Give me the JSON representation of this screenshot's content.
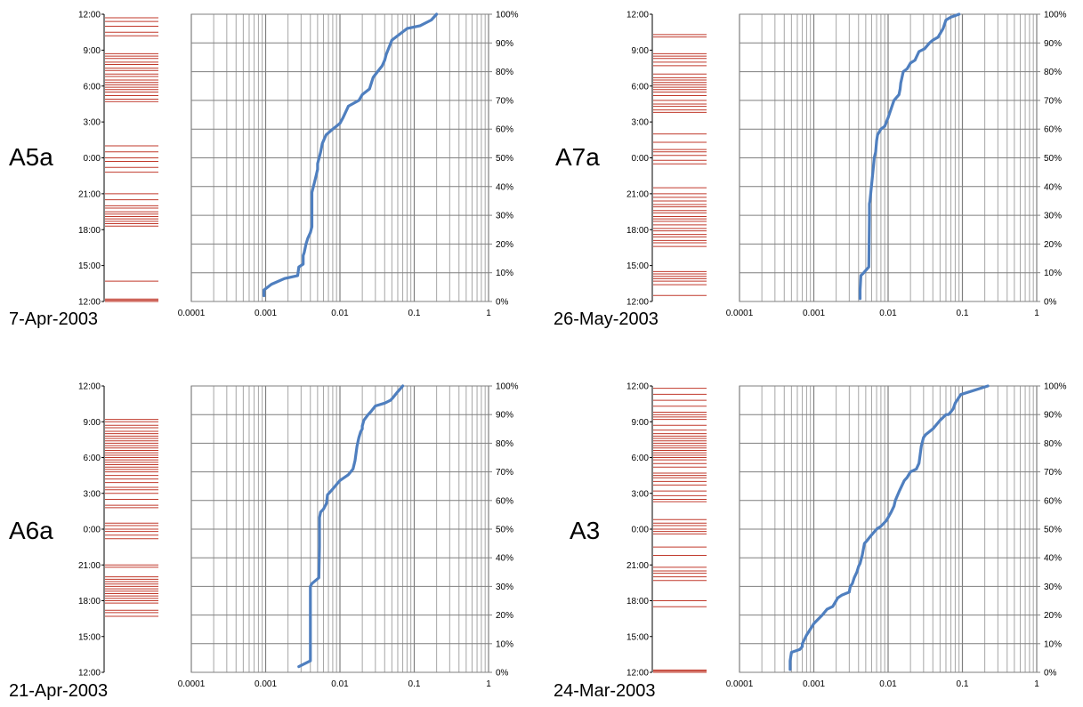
{
  "chart_data": [
    {
      "type": "line",
      "label": "A5a",
      "date": "7-Apr-2003",
      "time_ticks": [
        "12:00",
        "9:00",
        "6:00",
        "3:00",
        "0:00",
        "21:00",
        "18:00",
        "15:00",
        "12:00"
      ],
      "x_ticks": [
        "0.0001",
        "0.001",
        "0.01",
        "0.1",
        "1"
      ],
      "y_ticks": [
        "100%",
        "90%",
        "80%",
        "70%",
        "60%",
        "50%",
        "40%",
        "30%",
        "20%",
        "10%",
        "0%"
      ],
      "xscale": "log",
      "xlim": [
        0.0001,
        1
      ],
      "ylim": [
        0,
        100
      ],
      "grid": true,
      "event_times_hours_before_top": [
        0.3,
        0.6,
        1.0,
        1.5,
        1.8,
        3.3,
        3.5,
        3.7,
        4.0,
        4.2,
        4.5,
        4.7,
        5.0,
        5.2,
        5.5,
        5.7,
        5.9,
        6.1,
        6.3,
        6.5,
        6.8,
        7.1,
        7.3,
        11.0,
        11.5,
        12.0,
        12.3,
        12.8,
        13.2,
        15.0,
        15.5,
        16.0,
        16.2,
        16.5,
        16.7,
        16.9,
        17.1,
        17.3,
        17.5,
        17.7,
        22.3,
        23.8,
        23.9,
        24.0
      ],
      "series": [
        {
          "x": [
            0.00095,
            0.00095,
            0.0012,
            0.0018,
            0.0027,
            0.0028,
            0.0032,
            0.0032,
            0.0033,
            0.0035,
            0.0037,
            0.004,
            0.0042,
            0.0042,
            0.0042,
            0.0042,
            0.0045,
            0.0048,
            0.005,
            0.005,
            0.0055,
            0.0058,
            0.0065,
            0.008,
            0.01,
            0.011,
            0.013,
            0.018,
            0.02,
            0.025,
            0.028,
            0.032,
            0.037,
            0.04,
            0.042,
            0.05,
            0.08,
            0.12,
            0.17,
            0.2
          ],
          "y": [
            2,
            4,
            6,
            8,
            9,
            12,
            13,
            16,
            17,
            20,
            22,
            24,
            26,
            30,
            34,
            38,
            41,
            44,
            46,
            48,
            52,
            55,
            58,
            60,
            62,
            64,
            68,
            70,
            72,
            74,
            78,
            80,
            82,
            84,
            86,
            91,
            95,
            96,
            98,
            100
          ]
        }
      ]
    },
    {
      "type": "line",
      "label": "A7a",
      "date": "26-May-2003",
      "time_ticks": [
        "12:00",
        "9:00",
        "6:00",
        "3:00",
        "0:00",
        "21:00",
        "18:00",
        "15:00",
        "12:00"
      ],
      "x_ticks": [
        "0.0001",
        "0.001",
        "0.01",
        "0.1",
        "1"
      ],
      "y_ticks": [
        "100%",
        "90%",
        "80%",
        "70%",
        "60%",
        "50%",
        "40%",
        "30%",
        "20%",
        "10%",
        "0%"
      ],
      "xscale": "log",
      "xlim": [
        0.0001,
        1
      ],
      "ylim": [
        0,
        100
      ],
      "grid": true,
      "event_times_hours_before_top": [
        1.7,
        1.9,
        3.3,
        3.5,
        3.7,
        4.0,
        4.3,
        5.0,
        5.3,
        5.5,
        5.7,
        5.9,
        6.1,
        6.3,
        6.5,
        6.8,
        7.2,
        7.5,
        7.7,
        8.0,
        8.2,
        10.0,
        10.7,
        11.3,
        11.5,
        11.8,
        12.2,
        12.5,
        14.5,
        15.0,
        15.3,
        15.6,
        15.9,
        16.1,
        16.4,
        16.6,
        16.9,
        17.1,
        17.3,
        17.6,
        17.9,
        18.1,
        18.4,
        18.6,
        18.9,
        19.1,
        19.4,
        21.5,
        21.7,
        21.9,
        22.1,
        22.3,
        22.6,
        23.5
      ],
      "series": [
        {
          "x": [
            0.0042,
            0.0042,
            0.0043,
            0.0047,
            0.0055,
            0.0056,
            0.0056,
            0.0057,
            0.0063,
            0.0065,
            0.0068,
            0.007,
            0.0072,
            0.008,
            0.009,
            0.01,
            0.012,
            0.014,
            0.0145,
            0.0148,
            0.016,
            0.018,
            0.02,
            0.023,
            0.024,
            0.026,
            0.031,
            0.036,
            0.04,
            0.047,
            0.055,
            0.06,
            0.07,
            0.09
          ],
          "y": [
            1,
            4,
            9,
            10,
            12,
            29,
            34,
            35,
            46,
            50,
            52,
            56,
            58,
            60,
            61,
            64,
            70,
            72,
            74,
            76,
            80,
            81,
            83,
            84,
            85,
            87,
            88,
            90,
            91,
            92,
            95,
            98,
            99,
            100
          ]
        }
      ]
    },
    {
      "type": "line",
      "label": "A6a",
      "date": "21-Apr-2003",
      "time_ticks": [
        "12:00",
        "9:00",
        "6:00",
        "3:00",
        "0:00",
        "21:00",
        "18:00",
        "15:00",
        "12:00"
      ],
      "x_ticks": [
        "0.0001",
        "0.001",
        "0.01",
        "0.1",
        "1"
      ],
      "y_ticks": [
        "100%",
        "90%",
        "80%",
        "70%",
        "60%",
        "50%",
        "40%",
        "30%",
        "20%",
        "10%",
        "0%"
      ],
      "xscale": "log",
      "xlim": [
        0.0001,
        1
      ],
      "ylim": [
        0,
        100
      ],
      "grid": true,
      "event_times_hours_before_top": [
        2.8,
        3.0,
        3.3,
        3.5,
        3.8,
        4.0,
        4.2,
        4.4,
        4.6,
        4.8,
        5.0,
        5.2,
        5.4,
        5.6,
        5.8,
        6.0,
        6.2,
        6.4,
        6.6,
        6.8,
        7.0,
        7.2,
        7.5,
        7.8,
        8.1,
        8.5,
        8.7,
        9.0,
        9.5,
        10.0,
        10.2,
        11.5,
        11.7,
        12.0,
        12.2,
        12.5,
        12.8,
        15.0,
        15.2,
        16.0,
        16.2,
        16.4,
        16.6,
        16.8,
        17.0,
        17.2,
        17.4,
        17.6,
        17.8,
        18.0,
        18.2,
        18.8,
        19.0,
        19.3
      ],
      "series": [
        {
          "x": [
            0.0028,
            0.004,
            0.004,
            0.004,
            0.0042,
            0.0052,
            0.0053,
            0.0053,
            0.0055,
            0.006,
            0.0066,
            0.0068,
            0.008,
            0.01,
            0.013,
            0.015,
            0.016,
            0.017,
            0.018,
            0.019,
            0.02,
            0.02,
            0.021,
            0.024,
            0.026,
            0.03,
            0.04,
            0.048,
            0.052,
            0.06,
            0.07
          ],
          "y": [
            2,
            4,
            29,
            30,
            31,
            33,
            44,
            54,
            56,
            57,
            59,
            62,
            64,
            67,
            69,
            71,
            74,
            79,
            82,
            84,
            85,
            86,
            88,
            90,
            91,
            93,
            94,
            95,
            96,
            98,
            100
          ]
        }
      ]
    },
    {
      "type": "line",
      "label": "A3",
      "date": "24-Mar-2003",
      "time_ticks": [
        "12:00",
        "9:00",
        "6:00",
        "3:00",
        "0:00",
        "21:00",
        "18:00",
        "15:00",
        "12:00"
      ],
      "x_ticks": [
        "0.0001",
        "0.001",
        "0.01",
        "0.1",
        "1"
      ],
      "y_ticks": [
        "100%",
        "90%",
        "80%",
        "70%",
        "60%",
        "50%",
        "40%",
        "30%",
        "20%",
        "10%",
        "0%"
      ],
      "xscale": "log",
      "xlim": [
        0.0001,
        1
      ],
      "ylim": [
        0,
        100
      ],
      "grid": true,
      "event_times_hours_before_top": [
        0.2,
        0.7,
        1.2,
        1.7,
        2.2,
        2.4,
        2.6,
        2.8,
        3.3,
        3.7,
        4.0,
        4.2,
        4.4,
        4.6,
        4.8,
        5.0,
        5.2,
        5.4,
        5.6,
        5.8,
        6.0,
        6.2,
        6.5,
        6.8,
        7.3,
        7.5,
        7.7,
        8.0,
        8.3,
        8.8,
        9.2,
        9.5,
        9.7,
        11.2,
        11.5,
        11.7,
        12.0,
        12.2,
        12.4,
        13.5,
        14.2,
        15.2,
        15.5,
        15.7,
        16.0,
        16.3,
        18.0,
        18.5,
        23.8,
        23.9,
        24.0
      ],
      "series": [
        {
          "x": [
            0.00048,
            0.00048,
            0.0005,
            0.00065,
            0.0007,
            0.0007,
            0.0008,
            0.001,
            0.0013,
            0.0015,
            0.0018,
            0.002,
            0.0021,
            0.0024,
            0.003,
            0.0031,
            0.0033,
            0.0035,
            0.0038,
            0.004,
            0.0042,
            0.0045,
            0.0048,
            0.0052,
            0.006,
            0.007,
            0.008,
            0.0095,
            0.011,
            0.012,
            0.0125,
            0.014,
            0.0165,
            0.018,
            0.02,
            0.024,
            0.026,
            0.027,
            0.028,
            0.03,
            0.032,
            0.04,
            0.05,
            0.055,
            0.06,
            0.065,
            0.07,
            0.075,
            0.08,
            0.095,
            0.22
          ],
          "y": [
            1,
            4,
            7,
            8,
            9,
            10,
            13,
            17,
            20,
            22,
            23,
            25,
            26,
            27,
            28,
            30,
            31,
            33,
            35,
            37,
            38,
            41,
            45,
            46,
            48,
            50,
            51,
            53,
            56,
            58,
            60,
            63,
            67,
            68,
            70,
            71,
            73,
            76,
            79,
            82,
            83,
            85,
            88,
            89,
            90,
            90,
            91,
            92,
            94,
            97,
            100
          ]
        }
      ]
    }
  ]
}
